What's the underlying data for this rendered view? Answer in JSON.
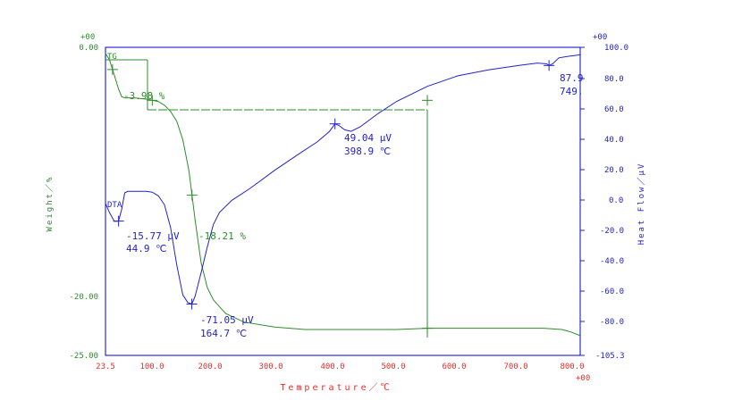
{
  "chart_data": {
    "type": "line",
    "xlabel": "Temperature／℃",
    "xlim": [
      23.5,
      800.0
    ],
    "x_tick_labels": [
      "23.5",
      "100.0",
      "200.0",
      "300.0",
      "400.0",
      "500.0",
      "600.0",
      "700.0",
      "800.0"
    ],
    "x_exponent_label": "+00",
    "y_left": {
      "label": "Weight／%",
      "exponent_label": "+00",
      "ylim": [
        -25.0,
        0.0
      ],
      "tick_labels": [
        "0.00",
        "-20.00",
        "-25.00"
      ],
      "color": "#2e8b2e"
    },
    "y_right": {
      "label": "Heat Flow／μV",
      "exponent_label": "+00",
      "ylim": [
        -105.3,
        100.0
      ],
      "tick_labels": [
        "100.0",
        "80.0",
        "60.0",
        "40.0",
        "20.0",
        "0.0",
        "-20.0",
        "-40.0",
        "-60.0",
        "-80.0",
        "-105.3"
      ],
      "color": "#2222cc"
    },
    "series": [
      {
        "name": "TG",
        "axis": "left",
        "color": "#2e8b2e",
        "points": [
          [
            23.5,
            -0.5
          ],
          [
            30,
            -1.0
          ],
          [
            35,
            -1.8
          ],
          [
            40,
            -2.6
          ],
          [
            45,
            -3.4
          ],
          [
            50,
            -4.0
          ],
          [
            55,
            -4.1
          ],
          [
            70,
            -4.1
          ],
          [
            90,
            -4.2
          ],
          [
            100,
            -4.3
          ],
          [
            110,
            -4.4
          ],
          [
            120,
            -4.7
          ],
          [
            130,
            -5.2
          ],
          [
            140,
            -6.0
          ],
          [
            150,
            -7.5
          ],
          [
            160,
            -10.0
          ],
          [
            165,
            -12.0
          ],
          [
            170,
            -14.0
          ],
          [
            180,
            -17.5
          ],
          [
            190,
            -19.5
          ],
          [
            200,
            -20.5
          ],
          [
            220,
            -21.6
          ],
          [
            250,
            -22.3
          ],
          [
            300,
            -22.7
          ],
          [
            350,
            -22.9
          ],
          [
            400,
            -22.9
          ],
          [
            450,
            -22.9
          ],
          [
            500,
            -22.9
          ],
          [
            550,
            -22.8
          ],
          [
            600,
            -22.8
          ],
          [
            650,
            -22.8
          ],
          [
            700,
            -22.8
          ],
          [
            740,
            -22.8
          ],
          [
            770,
            -22.9
          ],
          [
            785,
            -23.1
          ],
          [
            800,
            -23.4
          ]
        ]
      },
      {
        "name": "DTA",
        "axis": "right",
        "color": "#2222cc",
        "points": [
          [
            23.5,
            -4
          ],
          [
            30,
            -10
          ],
          [
            38,
            -16
          ],
          [
            44.9,
            -15.8
          ],
          [
            50,
            -8
          ],
          [
            55,
            3
          ],
          [
            60,
            4
          ],
          [
            90,
            4
          ],
          [
            100,
            3.5
          ],
          [
            110,
            1
          ],
          [
            120,
            -5
          ],
          [
            130,
            -20
          ],
          [
            140,
            -45
          ],
          [
            150,
            -65
          ],
          [
            158,
            -70
          ],
          [
            164.7,
            -71.1
          ],
          [
            170,
            -66
          ],
          [
            180,
            -50
          ],
          [
            190,
            -33
          ],
          [
            200,
            -18
          ],
          [
            210,
            -10
          ],
          [
            230,
            -2
          ],
          [
            260,
            6
          ],
          [
            300,
            18
          ],
          [
            340,
            29
          ],
          [
            370,
            37
          ],
          [
            390,
            44
          ],
          [
            398.9,
            49
          ],
          [
            405,
            48
          ],
          [
            415,
            45
          ],
          [
            425,
            44
          ],
          [
            440,
            47
          ],
          [
            470,
            56
          ],
          [
            500,
            64
          ],
          [
            550,
            74
          ],
          [
            600,
            81
          ],
          [
            650,
            85
          ],
          [
            700,
            88
          ],
          [
            730,
            89.5
          ],
          [
            745,
            89
          ],
          [
            749,
            87.9
          ],
          [
            755,
            89
          ],
          [
            765,
            93
          ],
          [
            780,
            94
          ],
          [
            800,
            95
          ]
        ]
      }
    ],
    "annotations": [
      {
        "id": "tg-label",
        "text": "TG"
      },
      {
        "id": "dta-label",
        "text": "DTA"
      },
      {
        "id": "tg-step1",
        "text": "-3.98 %"
      },
      {
        "id": "tg-step2",
        "text": "-18.21 %"
      },
      {
        "id": "dta-peak1-value",
        "text": "-15.77 μV"
      },
      {
        "id": "dta-peak1-temp",
        "text": "44.9 ℃"
      },
      {
        "id": "dta-peak2-value",
        "text": "-71.05 μV"
      },
      {
        "id": "dta-peak2-temp",
        "text": "164.7 ℃"
      },
      {
        "id": "dta-peak3-value",
        "text": "49.04 μV"
      },
      {
        "id": "dta-peak3-temp",
        "text": "398.9 ℃"
      },
      {
        "id": "dta-peak4-value",
        "text": "87.9"
      },
      {
        "id": "dta-peak4-temp",
        "text": "749."
      }
    ],
    "grid": false,
    "colors": {
      "weight_axis": "#2e8b2e",
      "heat_axis": "#2222cc",
      "temperature_axis": "#e03030",
      "frame": "#0000cc"
    }
  }
}
